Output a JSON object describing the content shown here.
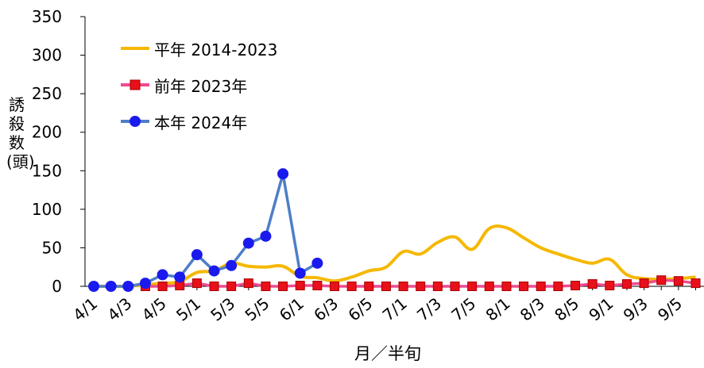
{
  "chart_data": {
    "type": "line",
    "xlabel": "月／半旬",
    "ylabel": "誘殺数(頭)",
    "ylim": [
      0,
      350
    ],
    "yticks": [
      0,
      50,
      100,
      150,
      200,
      250,
      300,
      350
    ],
    "x_tick_labels": [
      "4/1",
      "4/3",
      "4/5",
      "5/1",
      "5/3",
      "5/5",
      "6/1",
      "6/3",
      "6/5",
      "7/1",
      "7/3",
      "7/5",
      "8/1",
      "8/3",
      "8/5",
      "9/1",
      "9/3",
      "9/5"
    ],
    "n_points": 36,
    "legend_position": "top-left",
    "grid": false,
    "series": [
      {
        "name": "平年 2014-2023",
        "color": "#f5b800",
        "marker": "none",
        "values": [
          0,
          0,
          0,
          2,
          4,
          6,
          18,
          20,
          30,
          26,
          25,
          26,
          13,
          11,
          7,
          12,
          20,
          25,
          45,
          42,
          57,
          64,
          48,
          75,
          76,
          63,
          50,
          42,
          35,
          30,
          35,
          15,
          10,
          9,
          10,
          12
        ]
      },
      {
        "name": "前年 2023年",
        "color": "#ee4b8f",
        "marker": "square",
        "marker_color": "#e8101a",
        "values": [
          null,
          null,
          null,
          0,
          0,
          1,
          4,
          0,
          0,
          4,
          0,
          0,
          1,
          1,
          0,
          0,
          0,
          0,
          0,
          0,
          0,
          0,
          0,
          0,
          0,
          0,
          0,
          0,
          1,
          3,
          1,
          3,
          4,
          8,
          7,
          4
        ]
      },
      {
        "name": "本年 2024年",
        "color": "#4d7ec8",
        "marker": "circle",
        "marker_color": "#1a1aee",
        "values": [
          0,
          0,
          0,
          4,
          15,
          12,
          41,
          20,
          27,
          56,
          65,
          146,
          17,
          30
        ]
      }
    ]
  }
}
